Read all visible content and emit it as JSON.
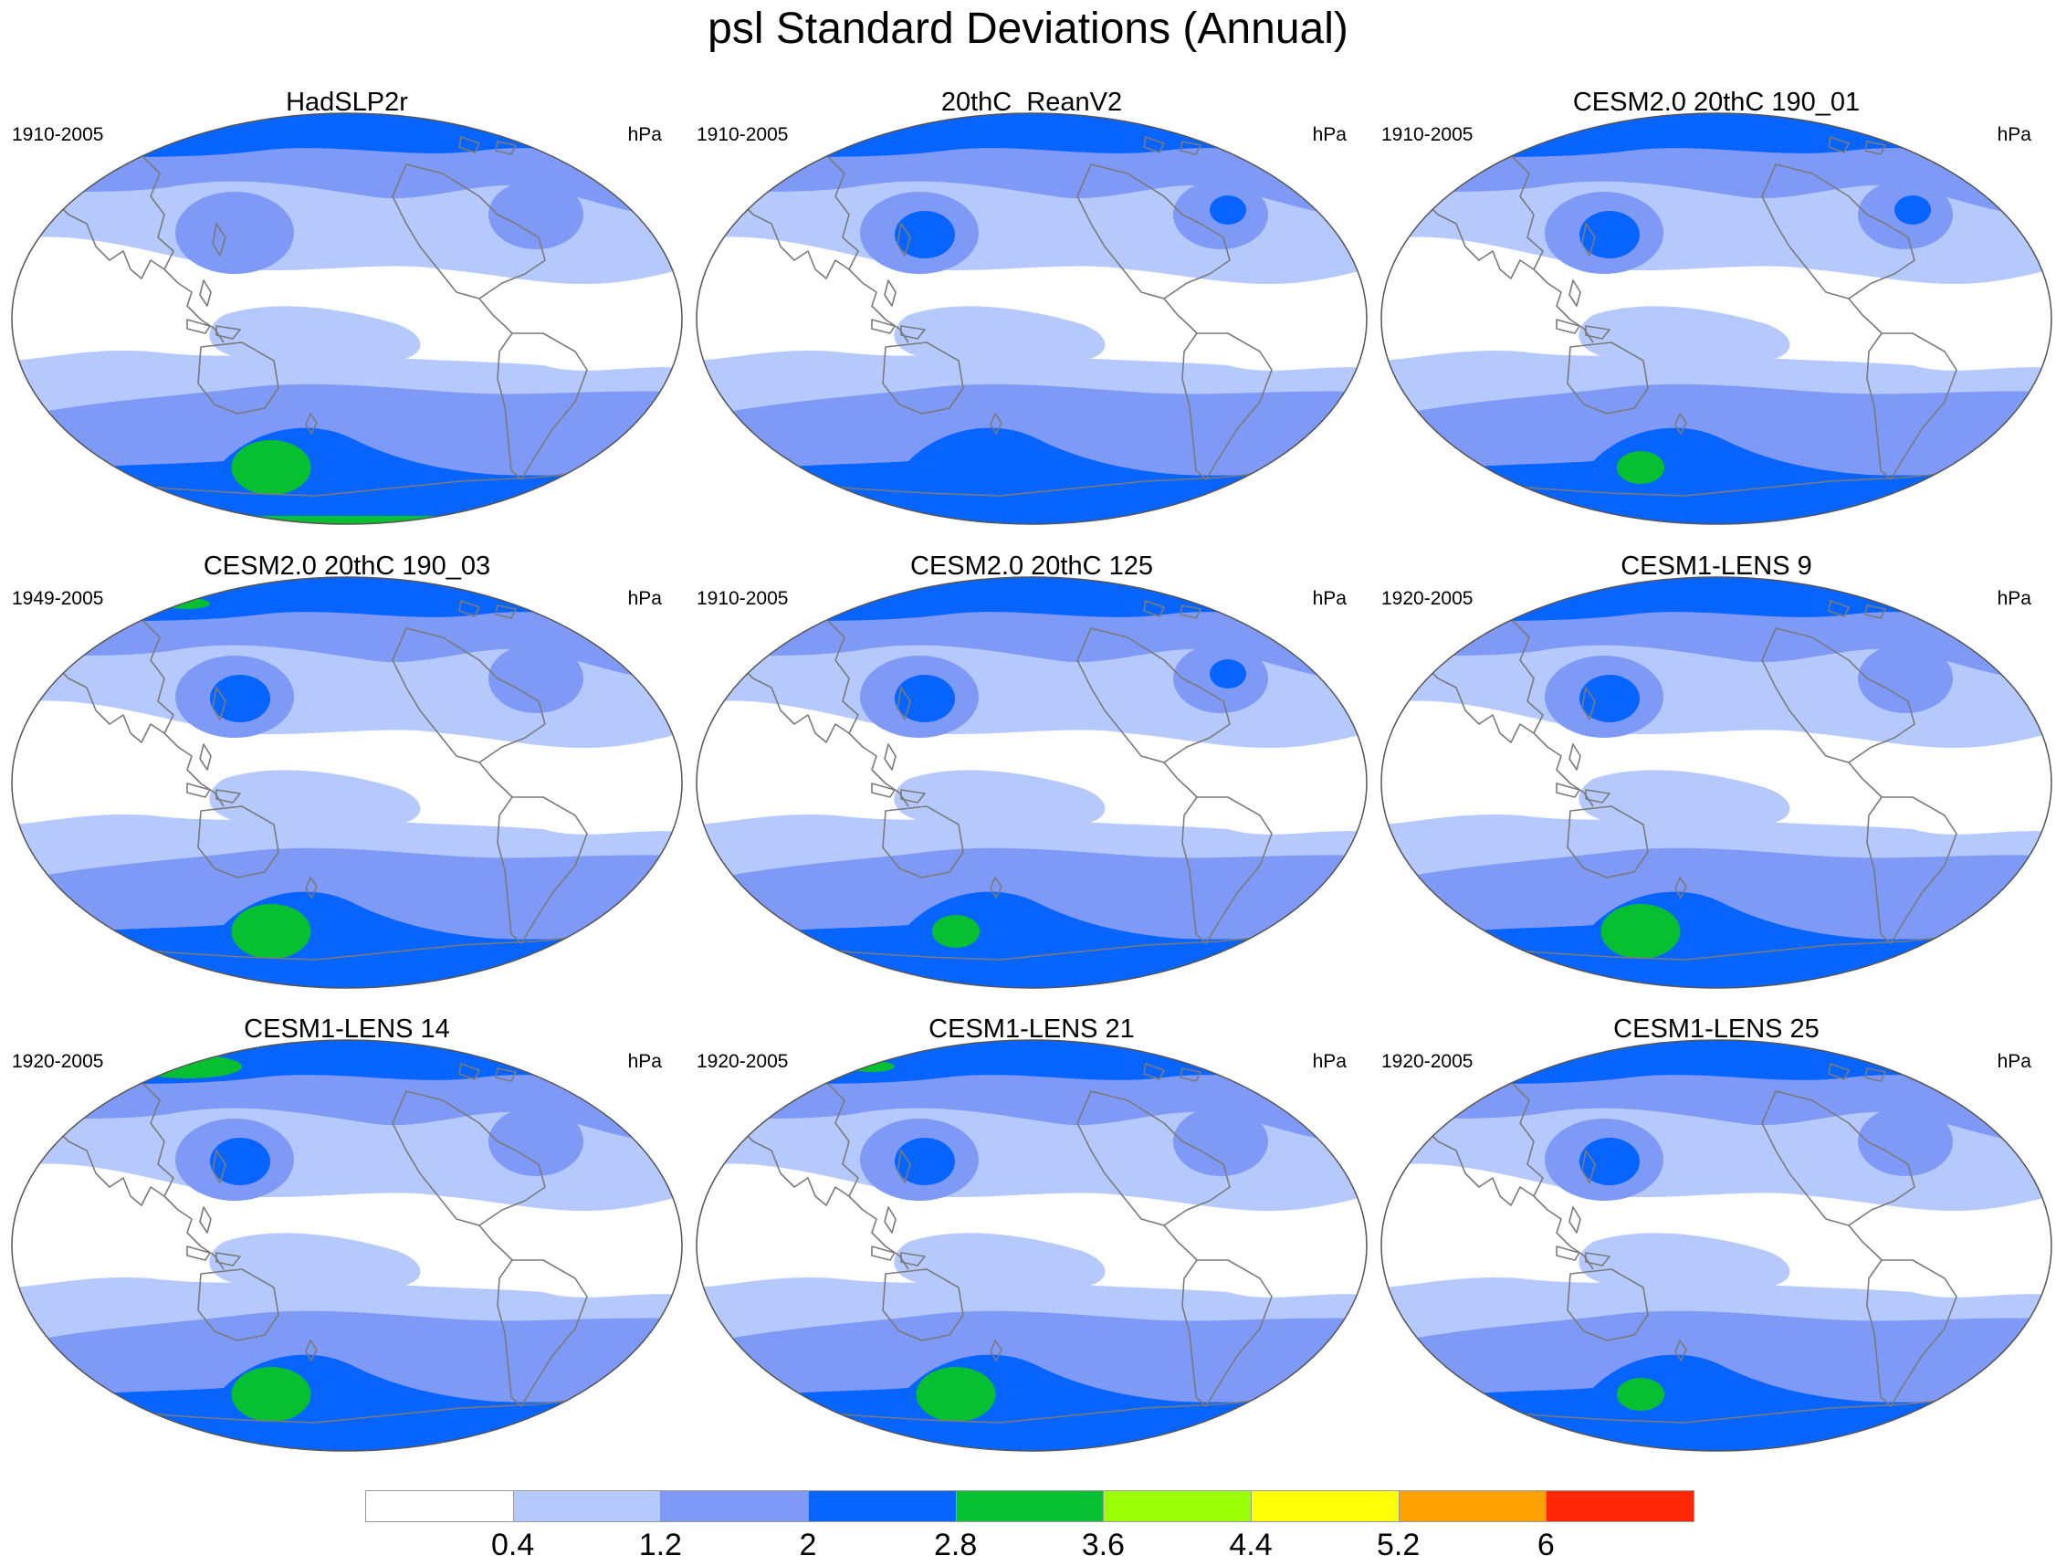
{
  "title": "psl Standard Deviations (Annual)",
  "colors": {
    "c0": "#ffffff",
    "c1": "#b6c9fc",
    "c2": "#7f99f6",
    "c3": "#0764ff",
    "c4": "#07c031",
    "c5": "#9aff07",
    "c6": "#ffff07",
    "c7": "#ffa003",
    "c8": "#ff2707",
    "coast": "#7a7a7a",
    "outline": "#555555"
  },
  "panels": [
    {
      "title": "HadSLP2r",
      "period": "1910-2005",
      "units": "hPa",
      "green": 2,
      "npac": 2,
      "nat": 2,
      "arcticGreen": 0,
      "bottomGreen": 1
    },
    {
      "title": "20thC_ReanV2",
      "period": "1910-2005",
      "units": "hPa",
      "green": 0,
      "npac": 3,
      "nat": 3,
      "arcticGreen": 0,
      "bottomGreen": 0
    },
    {
      "title": "CESM2.0 20thC 190_01",
      "period": "1910-2005",
      "units": "hPa",
      "green": 1,
      "npac": 3,
      "nat": 3,
      "arcticGreen": 0,
      "bottomGreen": 0
    },
    {
      "title": "CESM2.0 20thC 190_03",
      "period": "1949-2005",
      "units": "hPa",
      "green": 2,
      "npac": 3,
      "nat": 2,
      "arcticGreen": 1,
      "bottomGreen": 0
    },
    {
      "title": "CESM2.0 20thC 125",
      "period": "1910-2005",
      "units": "hPa",
      "green": 1,
      "npac": 3,
      "nat": 3,
      "arcticGreen": 0,
      "bottomGreen": 0
    },
    {
      "title": "CESM1-LENS 9",
      "period": "1920-2005",
      "units": "hPa",
      "green": 2,
      "npac": 3,
      "nat": 2,
      "arcticGreen": 0,
      "bottomGreen": 0
    },
    {
      "title": "CESM1-LENS 14",
      "period": "1920-2005",
      "units": "hPa",
      "green": 2,
      "npac": 3,
      "nat": 2,
      "arcticGreen": 2,
      "bottomGreen": 0
    },
    {
      "title": "CESM1-LENS 21",
      "period": "1920-2005",
      "units": "hPa",
      "green": 2,
      "npac": 3,
      "nat": 2,
      "arcticGreen": 1,
      "bottomGreen": 0
    },
    {
      "title": "CESM1-LENS 25",
      "period": "1920-2005",
      "units": "hPa",
      "green": 1,
      "npac": 3,
      "nat": 2,
      "arcticGreen": 0,
      "bottomGreen": 0
    }
  ],
  "colorbar": {
    "labels": [
      "0.4",
      "1.2",
      "2",
      "2.8",
      "3.6",
      "4.4",
      "5.2",
      "6"
    ],
    "colors": [
      "#ffffff",
      "#b6c9fc",
      "#7f99f6",
      "#0764ff",
      "#07c031",
      "#9aff07",
      "#ffff07",
      "#ffa003",
      "#ff2707"
    ]
  }
}
